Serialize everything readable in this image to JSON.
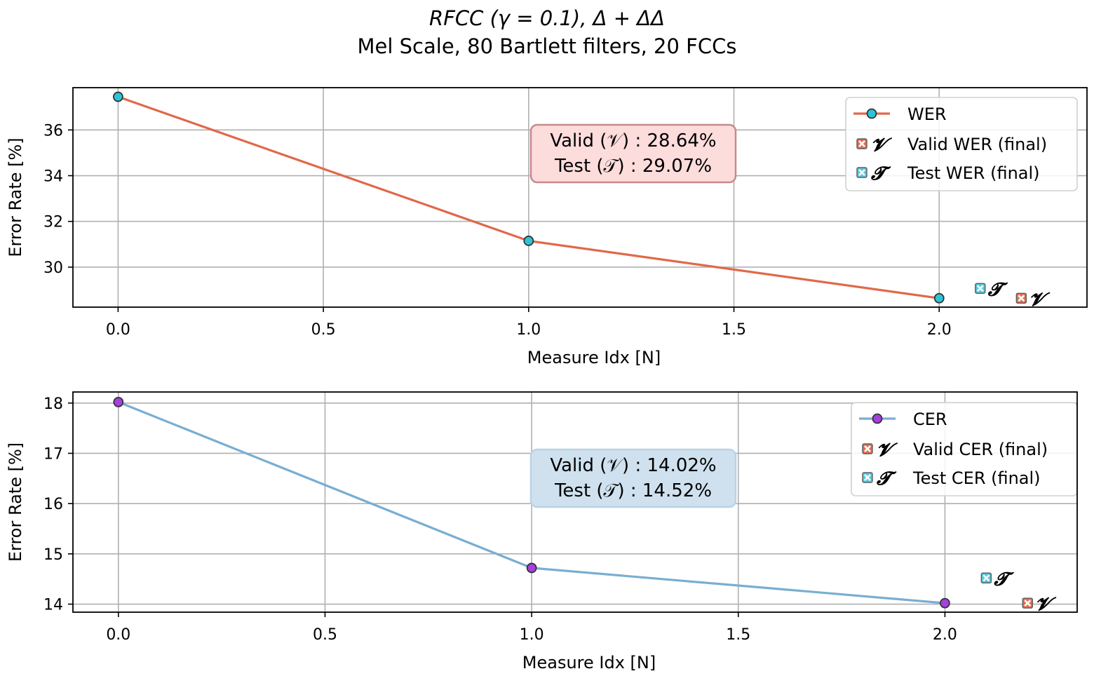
{
  "figure": {
    "title_line1": "RFCC (γ = 0.1), Δ + ΔΔ",
    "title_line2": "Mel Scale, 80 Bartlett filters, 20 FCCs"
  },
  "chart_data": [
    {
      "type": "line",
      "title": "",
      "xlabel": "Measure Idx [N]",
      "ylabel": "Error Rate [%]",
      "xlim": [
        -0.11,
        2.36
      ],
      "ylim": [
        28.25,
        37.85
      ],
      "xticks": [
        0.0,
        0.5,
        1.0,
        1.5,
        2.0
      ],
      "xtick_labels": [
        "0.0",
        "0.5",
        "1.0",
        "1.5",
        "2.0"
      ],
      "yticks": [
        30,
        32,
        34,
        36
      ],
      "ytick_labels": [
        "30",
        "32",
        "34",
        "36"
      ],
      "grid": true,
      "legend_position": "top-right",
      "series": [
        {
          "name": "WER",
          "x": [
            0,
            1,
            2
          ],
          "values": [
            37.45,
            31.15,
            28.64
          ],
          "color": "#e0694a",
          "marker_color": "#2bc4d6"
        }
      ],
      "final_markers": [
        {
          "name": "Valid WER (final)",
          "symbol": "𝓥",
          "x": 2.2,
          "value": 28.64,
          "color": "#e0694a"
        },
        {
          "name": "Test WER (final)",
          "symbol": "𝓣",
          "x": 2.1,
          "value": 29.07,
          "color": "#4fc6dc"
        }
      ],
      "annotation": {
        "line1": "Valid (𝒱) :  28.64%",
        "line2": "Test (𝒯) :  29.07%",
        "bg_color": "#fddcdc",
        "border_color": "#c78a8a"
      }
    },
    {
      "type": "line",
      "title": "",
      "xlabel": "Measure Idx [N]",
      "ylabel": "Error Rate [%]",
      "xlim": [
        -0.11,
        2.32
      ],
      "ylim": [
        13.84,
        18.22
      ],
      "xticks": [
        0.0,
        0.5,
        1.0,
        1.5,
        2.0
      ],
      "xtick_labels": [
        "0.0",
        "0.5",
        "1.0",
        "1.5",
        "2.0"
      ],
      "yticks": [
        14,
        15,
        16,
        17,
        18
      ],
      "ytick_labels": [
        "14",
        "15",
        "16",
        "17",
        "18"
      ],
      "grid": true,
      "legend_position": "top-right",
      "series": [
        {
          "name": "CER",
          "x": [
            0,
            1,
            2
          ],
          "values": [
            18.02,
            14.72,
            14.02
          ],
          "color": "#79aed2",
          "marker_color": "#a63fe0"
        }
      ],
      "final_markers": [
        {
          "name": "Valid CER (final)",
          "symbol": "𝓥",
          "x": 2.2,
          "value": 14.02,
          "color": "#e0694a"
        },
        {
          "name": "Test CER (final)",
          "symbol": "𝓣",
          "x": 2.1,
          "value": 14.52,
          "color": "#4fc6dc"
        }
      ],
      "annotation": {
        "line1": "Valid (𝒱) :  14.02%",
        "line2": "Test (𝒯) :  14.52%",
        "bg_color": "#cfe1ee",
        "border_color": "#b9d3e6"
      }
    }
  ]
}
